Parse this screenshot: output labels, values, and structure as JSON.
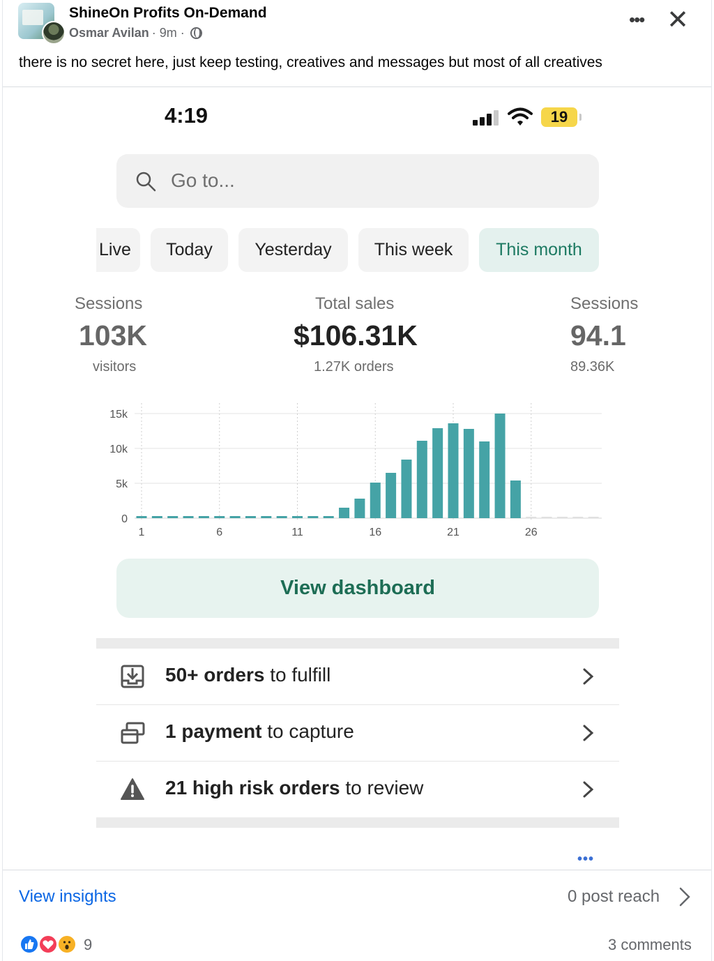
{
  "post": {
    "page_name": "ShineOn Profits On-Demand",
    "author": "Osmar Avilan",
    "time": "· 9m ·",
    "caption": "there is no secret here, just keep testing, creatives and messages but most of all creatives",
    "more_icon": "more-horizontal-icon",
    "close_icon": "close-icon",
    "audience_icon": "globe-icon"
  },
  "phone": {
    "time": "4:19",
    "battery": "19",
    "search_placeholder": "Go to...",
    "tabs": [
      {
        "label": "Live",
        "active": false
      },
      {
        "label": "Today",
        "active": false
      },
      {
        "label": "Yesterday",
        "active": false
      },
      {
        "label": "This week",
        "active": false
      },
      {
        "label": "This month",
        "active": true
      }
    ],
    "stats": {
      "left": {
        "label": "Sessions",
        "value": "103K",
        "sub": "visitors"
      },
      "center": {
        "label": "Total sales",
        "value": "$106.31K",
        "sub": "1.27K orders"
      },
      "right": {
        "label": "Sessions",
        "value": "94.1",
        "sub": "89.36K"
      }
    },
    "dashboard_button": "View dashboard",
    "tasks": [
      {
        "bold": "50+ orders",
        "rest": " to fulfill",
        "icon": "inbox-download-icon"
      },
      {
        "bold": "1 payment",
        "rest": " to capture",
        "icon": "payment-card-icon"
      },
      {
        "bold": "21 high risk orders",
        "rest": " to review",
        "icon": "warning-icon"
      }
    ]
  },
  "footer": {
    "view_insights": "View insights",
    "post_reach": "0 post reach",
    "reaction_count": "9",
    "comments": "3 comments"
  },
  "colors": {
    "bar": "#45a3a6",
    "accent_green": "#1d7a62",
    "link_blue": "#0a66e4"
  },
  "chart_data": {
    "type": "bar",
    "x": [
      1,
      2,
      3,
      4,
      5,
      6,
      7,
      8,
      9,
      10,
      11,
      12,
      13,
      14,
      15,
      16,
      17,
      18,
      19,
      20,
      21,
      22,
      23,
      24,
      25
    ],
    "values": [
      200,
      200,
      200,
      200,
      200,
      200,
      200,
      200,
      200,
      200,
      200,
      200,
      200,
      1500,
      2800,
      5100,
      6500,
      8400,
      11100,
      12900,
      13600,
      12800,
      11000,
      15000,
      5400
    ],
    "future_x": [
      26,
      27,
      28,
      29,
      30
    ],
    "y_ticks": [
      "15k",
      "10k",
      "5k",
      "0"
    ],
    "x_ticks": [
      "1",
      "6",
      "11",
      "16",
      "21",
      "26"
    ],
    "ylim": [
      0,
      15000
    ]
  }
}
